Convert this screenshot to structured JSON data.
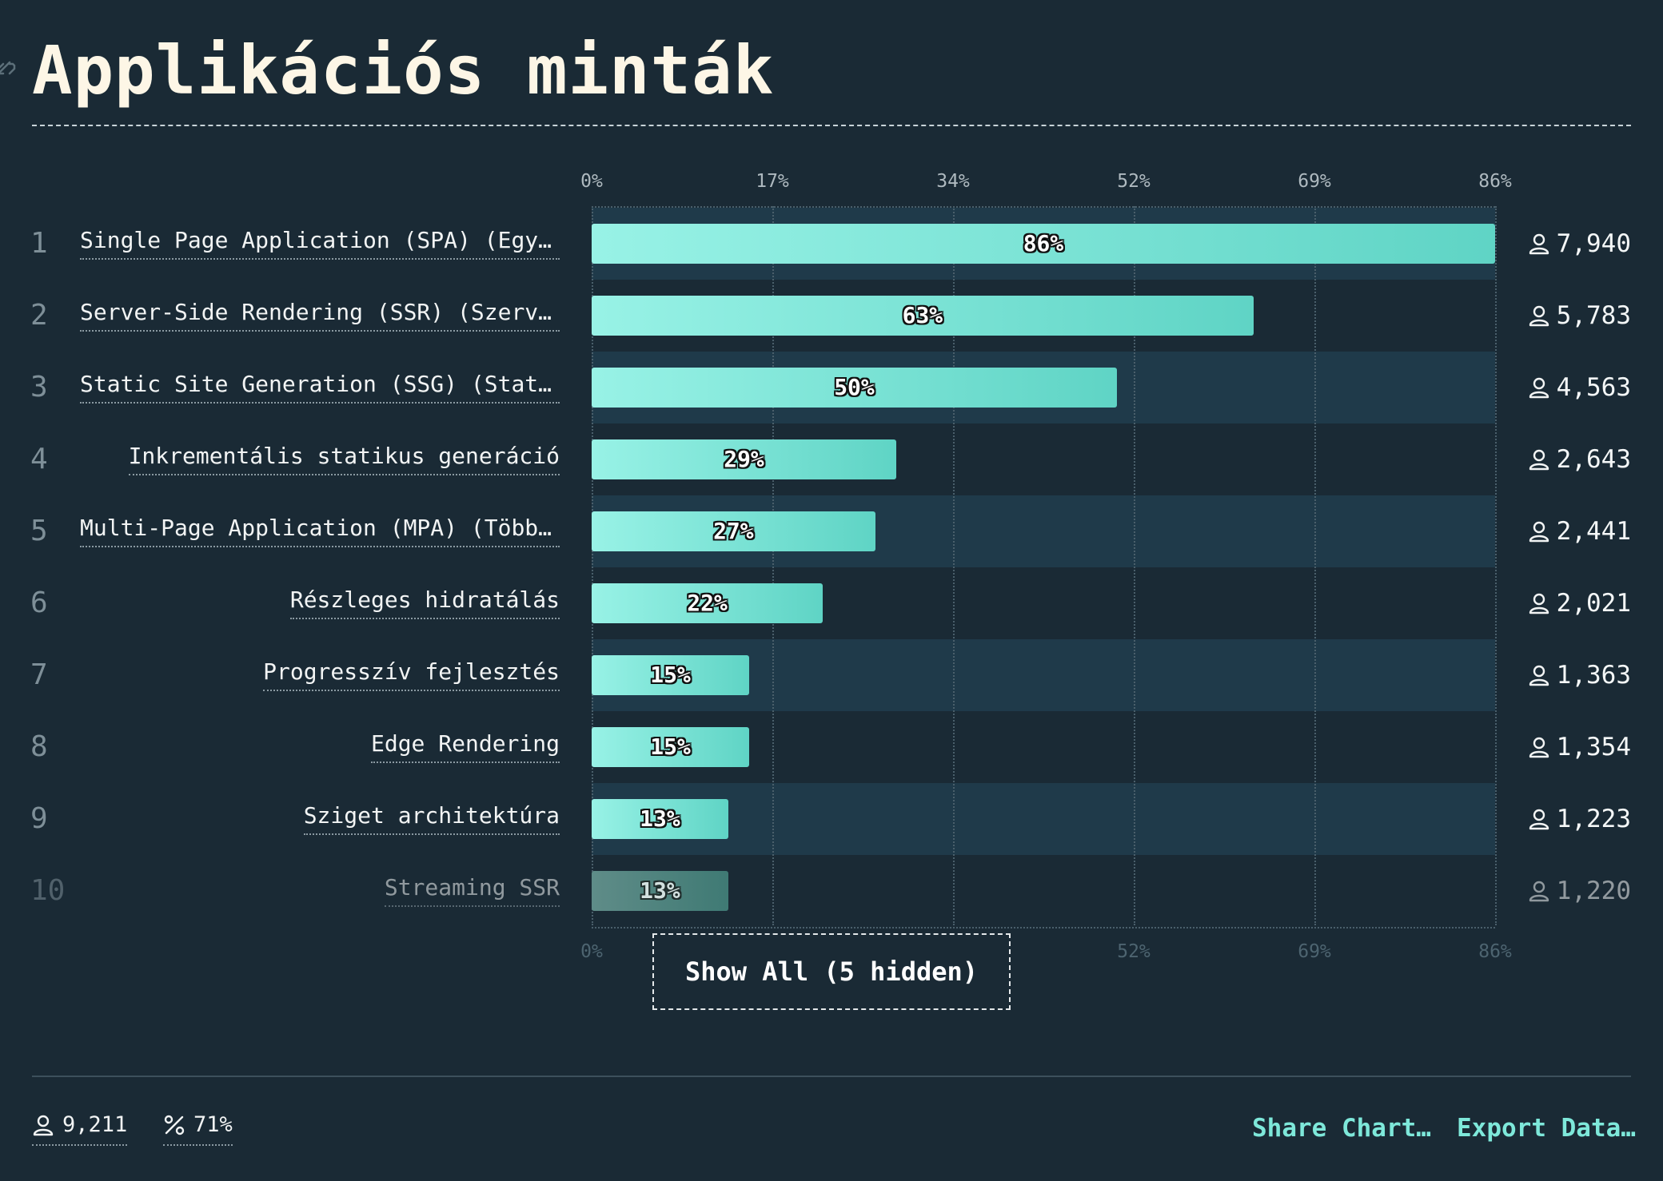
{
  "title": "Applikációs minták",
  "chart_data": {
    "type": "bar",
    "orientation": "horizontal",
    "xlim": [
      0,
      86
    ],
    "x_ticks": [
      "0%",
      "17%",
      "34%",
      "52%",
      "69%",
      "86%"
    ],
    "x_tick_values": [
      0,
      17.2,
      34.4,
      51.6,
      68.8,
      86
    ],
    "categories": [
      "Single Page Application (SPA) (Egyold…",
      "Server-Side Rendering (SSR) (Szerver-…",
      "Static Site Generation (SSG) (Statiku…",
      "Inkrementális statikus generáció",
      "Multi-Page Application (MPA) (Többold…",
      "Részleges hidratálás",
      "Progresszív fejlesztés",
      "Edge Rendering",
      "Sziget architektúra",
      "Streaming SSR"
    ],
    "ranks": [
      "1",
      "2",
      "3",
      "4",
      "5",
      "6",
      "7",
      "8",
      "9",
      "10"
    ],
    "values": [
      86,
      63,
      50,
      29,
      27,
      22,
      15,
      15,
      13,
      13
    ],
    "value_labels": [
      "86%",
      "63%",
      "50%",
      "29%",
      "27%",
      "22%",
      "15%",
      "15%",
      "13%",
      "13%"
    ],
    "counts": [
      "7,940",
      "5,783",
      "4,563",
      "2,643",
      "2,441",
      "2,021",
      "1,363",
      "1,354",
      "1,223",
      "1,220"
    ],
    "grid": true,
    "colors": {
      "bar_start": "#98f2e6",
      "bar_end": "#5fd4c5",
      "band": "#1f3a4a"
    }
  },
  "show_all_label": "Show All (5 hidden)",
  "footer": {
    "respondents": "9,211",
    "percent": "71%",
    "share_label": "Share Chart…",
    "export_label": "Export Data…"
  }
}
